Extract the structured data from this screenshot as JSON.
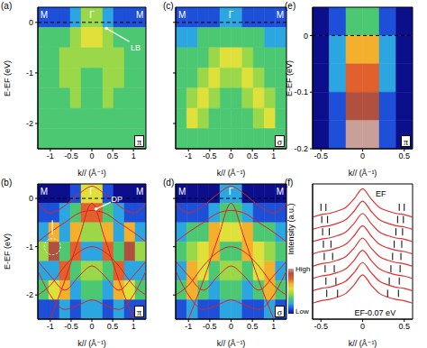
{
  "chart_data": [
    {
      "type": "heatmap",
      "panel_label": "(a)",
      "xlabel": "k// (Å⁻¹)",
      "ylabel": "E-EF (eV)",
      "xlim": [
        -1.3,
        1.3
      ],
      "ylim": [
        -2.5,
        0.3
      ],
      "xticks": [
        -1,
        -0.5,
        0,
        0.5,
        1
      ],
      "yticks": [
        -2,
        -1,
        0
      ],
      "polarization_label": "π",
      "high_symmetry_points": [
        {
          "label": "M",
          "k": -1.15
        },
        {
          "label": "Γ",
          "k": 0
        },
        {
          "label": "M",
          "k": 1.15
        }
      ],
      "reference_lines": [
        {
          "y": 0,
          "line_style": "dashed"
        }
      ],
      "annotations": [
        {
          "text": "LB",
          "x": 1.05,
          "y": -0.5,
          "arrow_from": [
            0.9,
            -0.38
          ],
          "arrow_to": [
            0.35,
            -0.12
          ]
        }
      ],
      "color_range": [
        0,
        9
      ],
      "x_edges": [
        -1.3,
        -1.04,
        -0.78,
        -0.52,
        -0.26,
        0,
        0.26,
        0.52,
        0.78,
        1.04,
        1.3
      ],
      "y_edges": [
        0.3,
        -0.1,
        -0.5,
        -0.9,
        -1.3,
        -1.7,
        -2.1,
        -2.5
      ],
      "cells": [
        [
          1,
          1,
          1,
          2,
          4,
          4,
          2,
          1,
          1,
          1
        ],
        [
          3,
          3,
          3,
          4,
          5,
          5,
          4,
          3,
          3,
          3
        ],
        [
          3,
          3,
          4,
          4,
          4,
          4,
          4,
          4,
          3,
          3
        ],
        [
          3,
          3,
          4,
          4,
          3,
          3,
          4,
          4,
          3,
          3
        ],
        [
          3,
          3,
          3,
          4,
          3,
          3,
          4,
          3,
          3,
          3
        ],
        [
          3,
          3,
          3,
          3,
          3,
          3,
          3,
          3,
          3,
          3
        ],
        [
          3,
          3,
          3,
          3,
          3,
          3,
          3,
          3,
          3,
          3
        ]
      ]
    },
    {
      "type": "heatmap",
      "panel_label": "(b)",
      "xlabel": "k// (Å⁻¹)",
      "ylabel": "E-EF (eV)",
      "xlim": [
        -1.3,
        1.3
      ],
      "ylim": [
        -2.5,
        0.3
      ],
      "xticks": [
        -1,
        -0.5,
        0,
        0.5,
        1
      ],
      "yticks": [
        -2,
        -1,
        0
      ],
      "polarization_label": "π",
      "high_symmetry_points": [
        {
          "label": "M",
          "k": -1.15
        },
        {
          "label": "Γ",
          "k": 0
        },
        {
          "label": "M",
          "k": 1.15
        }
      ],
      "reference_lines": [
        {
          "y": 0,
          "line_style": "dashed"
        }
      ],
      "annotations": [
        {
          "text": "DP",
          "x": 0.6,
          "y": -0.02,
          "arrow_from": [
            0.45,
            -0.08
          ],
          "arrow_to": [
            0.1,
            -0.22
          ]
        }
      ],
      "markers": [
        {
          "x": -0.95,
          "y": -1.0,
          "marker": "circle",
          "arrow_from": [
            -0.95,
            -0.45
          ],
          "arrow_to": [
            -0.95,
            -0.75
          ]
        }
      ],
      "color_range": [
        0,
        9
      ],
      "x_edges": [
        -1.3,
        -1.04,
        -0.78,
        -0.52,
        -0.26,
        0,
        0.26,
        0.52,
        0.78,
        1.04,
        1.3
      ],
      "y_edges": [
        0.3,
        -0.1,
        -0.5,
        -0.9,
        -1.3,
        -1.7,
        -2.1,
        -2.5
      ],
      "cells": [
        [
          0,
          0,
          0,
          1,
          5,
          5,
          1,
          0,
          0,
          0
        ],
        [
          1,
          1,
          2,
          3,
          7,
          7,
          3,
          2,
          1,
          1
        ],
        [
          2,
          6,
          2,
          6,
          4,
          4,
          6,
          2,
          6,
          2
        ],
        [
          4,
          8,
          3,
          7,
          2,
          2,
          7,
          3,
          8,
          4
        ],
        [
          2,
          2,
          7,
          3,
          4,
          4,
          3,
          7,
          2,
          2
        ],
        [
          3,
          5,
          6,
          2,
          3,
          3,
          2,
          6,
          5,
          3
        ],
        [
          1,
          1,
          2,
          1,
          2,
          2,
          1,
          2,
          1,
          1
        ]
      ],
      "bands": {
        "color": "#e02020",
        "x": [
          -1.3,
          -1,
          -0.65,
          -0.3,
          0,
          0.3,
          0.65,
          1,
          1.3
        ],
        "values": [
          [
            -3.2,
            -2.5,
            -1.7,
            -0.8,
            -0.1,
            -0.8,
            -1.7,
            -2.5,
            -3.2
          ],
          [
            -0.1,
            -0.3,
            -0.15,
            0.1,
            0.25,
            0.1,
            -0.15,
            -0.3,
            -0.1
          ],
          [
            -0.9,
            -0.7,
            -0.5,
            -0.3,
            -0.25,
            -0.3,
            -0.5,
            -0.7,
            -0.9
          ],
          [
            -1.3,
            -1.6,
            -1.9,
            -1.6,
            -1.4,
            -1.6,
            -1.9,
            -1.6,
            -1.3
          ],
          [
            -2.0,
            -1.8,
            -1.4,
            -1.1,
            -1.0,
            -1.1,
            -1.4,
            -1.8,
            -2.0
          ],
          [
            -1.5,
            -2.0,
            -2.3,
            -2.2,
            -2.1,
            -2.2,
            -2.3,
            -2.0,
            -1.5
          ]
        ]
      }
    },
    {
      "type": "heatmap",
      "panel_label": "(c)",
      "xlabel": "k// (Å⁻¹)",
      "xlim": [
        -1.3,
        1.3
      ],
      "ylim": [
        -2.5,
        0.3
      ],
      "xticks": [
        -1,
        -0.5,
        0,
        0.5,
        1
      ],
      "yticks": [
        -2,
        -1,
        0
      ],
      "tick_labels": "x",
      "polarization_label": "σ",
      "high_symmetry_points": [
        {
          "label": "M",
          "k": -1.15
        },
        {
          "label": "Γ",
          "k": 0
        },
        {
          "label": "M",
          "k": 1.15
        }
      ],
      "reference_lines": [
        {
          "y": 0,
          "line_style": "dashed"
        }
      ],
      "color_range": [
        0,
        9
      ],
      "x_edges": [
        -1.3,
        -1.04,
        -0.78,
        -0.52,
        -0.26,
        0,
        0.26,
        0.52,
        0.78,
        1.04,
        1.3
      ],
      "y_edges": [
        0.3,
        -0.1,
        -0.5,
        -0.9,
        -1.3,
        -1.7,
        -2.1,
        -2.5
      ],
      "cells": [
        [
          1,
          1,
          1,
          1,
          2,
          2,
          1,
          1,
          1,
          1
        ],
        [
          2,
          2,
          3,
          3,
          3,
          3,
          3,
          3,
          2,
          2
        ],
        [
          3,
          3,
          3,
          4,
          5,
          5,
          4,
          3,
          3,
          3
        ],
        [
          3,
          3,
          4,
          5,
          4,
          4,
          5,
          4,
          3,
          3
        ],
        [
          3,
          4,
          5,
          4,
          3,
          3,
          4,
          5,
          4,
          3
        ],
        [
          3,
          5,
          4,
          3,
          3,
          3,
          3,
          4,
          5,
          3
        ],
        [
          3,
          3,
          3,
          3,
          3,
          3,
          3,
          3,
          3,
          3
        ]
      ]
    },
    {
      "type": "heatmap",
      "panel_label": "(d)",
      "xlabel": "k// (Å⁻¹)",
      "xlim": [
        -1.3,
        1.3
      ],
      "ylim": [
        -2.5,
        0.3
      ],
      "xticks": [
        -1,
        -0.5,
        0,
        0.5,
        1
      ],
      "yticks": [
        -2,
        -1,
        0
      ],
      "tick_labels": "x",
      "polarization_label": "σ",
      "high_symmetry_points": [
        {
          "label": "M",
          "k": -1.15
        },
        {
          "label": "Γ",
          "k": 0
        },
        {
          "label": "M",
          "k": 1.15
        }
      ],
      "reference_lines": [
        {
          "y": 0,
          "line_style": "dashed"
        }
      ],
      "color_range": [
        0,
        9
      ],
      "color_bar": {
        "range": [
          0,
          9
        ],
        "labels": [
          "High",
          "Low"
        ]
      },
      "x_edges": [
        -1.3,
        -1.04,
        -0.78,
        -0.52,
        -0.26,
        0,
        0.26,
        0.52,
        0.78,
        1.04,
        1.3
      ],
      "y_edges": [
        0.3,
        -0.1,
        -0.5,
        -0.9,
        -1.3,
        -1.7,
        -2.1,
        -2.5
      ],
      "cells": [
        [
          0,
          0,
          0,
          0,
          2,
          2,
          0,
          0,
          0,
          0
        ],
        [
          1,
          1,
          1,
          2,
          3,
          3,
          2,
          1,
          1,
          1
        ],
        [
          2,
          3,
          3,
          6,
          5,
          5,
          6,
          3,
          3,
          2
        ],
        [
          3,
          4,
          5,
          6,
          3,
          3,
          6,
          5,
          4,
          3
        ],
        [
          2,
          6,
          5,
          3,
          4,
          4,
          3,
          5,
          6,
          2
        ],
        [
          3,
          6,
          3,
          2,
          3,
          3,
          2,
          3,
          6,
          3
        ],
        [
          1,
          2,
          1,
          1,
          2,
          2,
          1,
          1,
          2,
          1
        ]
      ],
      "bands": {
        "color": "#e02020",
        "x": [
          -1.3,
          -1,
          -0.65,
          -0.3,
          0,
          0.3,
          0.65,
          1,
          1.3
        ],
        "values": [
          [
            -3.2,
            -2.5,
            -1.7,
            -0.8,
            -0.1,
            -0.8,
            -1.7,
            -2.5,
            -3.2
          ],
          [
            -0.1,
            -0.3,
            -0.15,
            0.1,
            0.25,
            0.1,
            -0.15,
            -0.3,
            -0.1
          ],
          [
            -0.9,
            -0.7,
            -0.5,
            -0.3,
            -0.25,
            -0.3,
            -0.5,
            -0.7,
            -0.9
          ],
          [
            -1.3,
            -1.6,
            -1.9,
            -1.6,
            -1.4,
            -1.6,
            -1.9,
            -1.6,
            -1.3
          ],
          [
            -2.0,
            -1.8,
            -1.4,
            -1.1,
            -1.0,
            -1.1,
            -1.4,
            -1.8,
            -2.0
          ],
          [
            -1.5,
            -2.0,
            -2.3,
            -2.2,
            -2.1,
            -2.2,
            -2.3,
            -2.0,
            -1.5
          ]
        ]
      }
    },
    {
      "type": "heatmap",
      "panel_label": "(e)",
      "xlabel": "k// (Å⁻¹)",
      "ylabel": "E-EF (eV)",
      "xlim": [
        -0.6,
        0.6
      ],
      "ylim": [
        -0.2,
        0.05
      ],
      "xticks": [
        -0.5,
        0,
        0.5
      ],
      "yticks": [
        -0.2,
        -0.1,
        0
      ],
      "polarization_label": "π",
      "reference_lines": [
        {
          "y": 0,
          "line_style": "dashed"
        }
      ],
      "color_range": [
        0,
        9
      ],
      "x_edges": [
        -0.6,
        -0.4,
        -0.2,
        0,
        0.2,
        0.4,
        0.6
      ],
      "y_edges": [
        0.05,
        0,
        -0.05,
        -0.1,
        -0.15,
        -0.2
      ],
      "cells": [
        [
          0,
          1,
          3,
          3,
          1,
          0
        ],
        [
          0,
          2,
          6,
          6,
          2,
          0
        ],
        [
          0,
          2,
          7,
          7,
          2,
          0
        ],
        [
          0,
          1,
          8,
          8,
          1,
          0
        ],
        [
          0,
          1,
          9,
          9,
          1,
          0
        ]
      ]
    },
    {
      "type": "line",
      "panel_label": "(f)",
      "xlabel": "k// (Å⁻¹)",
      "ylabel": "Intensity (a.u.)",
      "xlim": [
        -0.6,
        0.6
      ],
      "ylim": [
        -1,
        10
      ],
      "xticks": [
        -0.5,
        0,
        0.5
      ],
      "tick_labels": "x",
      "color": "#e03030",
      "x": [
        -0.6,
        -0.5,
        -0.4,
        -0.3,
        -0.2,
        -0.1,
        0,
        0.1,
        0.2,
        0.3,
        0.4,
        0.5,
        0.6
      ],
      "series": [
        {
          "values": [
            7.3,
            7.5,
            7.6,
            7.8,
            8.1,
            8.8,
            9.6,
            8.8,
            8.1,
            7.8,
            7.6,
            7.5,
            7.3
          ]
        },
        {
          "values": [
            6.3,
            6.5,
            6.6,
            6.8,
            7.1,
            7.8,
            8.6,
            7.8,
            7.1,
            6.8,
            6.6,
            6.5,
            6.3
          ]
        },
        {
          "values": [
            5.3,
            5.5,
            5.6,
            5.8,
            6.1,
            6.8,
            7.6,
            6.8,
            6.1,
            5.8,
            5.6,
            5.5,
            5.3
          ]
        },
        {
          "values": [
            4.3,
            4.5,
            4.6,
            4.8,
            5.1,
            5.8,
            6.6,
            5.8,
            5.1,
            4.8,
            4.6,
            4.5,
            4.3
          ]
        },
        {
          "values": [
            3.3,
            3.5,
            3.6,
            3.8,
            4.1,
            4.8,
            5.6,
            4.8,
            4.1,
            3.8,
            3.6,
            3.5,
            3.3
          ]
        },
        {
          "values": [
            2.3,
            2.5,
            2.6,
            2.8,
            3.1,
            3.8,
            4.6,
            3.8,
            3.1,
            2.8,
            2.6,
            2.5,
            2.3
          ]
        },
        {
          "values": [
            1.3,
            1.5,
            1.6,
            1.8,
            2.1,
            2.8,
            3.6,
            2.8,
            2.1,
            1.8,
            1.6,
            1.5,
            1.3
          ]
        },
        {
          "values": [
            0.3,
            0.5,
            0.6,
            0.8,
            1.1,
            1.8,
            2.6,
            1.8,
            1.1,
            0.8,
            0.6,
            0.5,
            0.3
          ]
        }
      ],
      "peaks": [
        {
          "x": [
            -0.5,
            -0.44,
            0.44,
            0.5
          ],
          "y": [
            8.1,
            8.1,
            8.1,
            8.1
          ]
        },
        {
          "x": [
            -0.49,
            -0.42,
            0.42,
            0.49
          ],
          "y": [
            7.1,
            7.1,
            7.1,
            7.1
          ]
        },
        {
          "x": [
            -0.48,
            -0.4,
            0.4,
            0.48
          ],
          "y": [
            6.1,
            6.1,
            6.1,
            6.1
          ]
        },
        {
          "x": [
            -0.47,
            -0.38,
            0.38,
            0.47
          ],
          "y": [
            5.1,
            5.1,
            5.1,
            5.1
          ]
        },
        {
          "x": [
            -0.46,
            -0.36,
            0.36,
            0.46
          ],
          "y": [
            4.1,
            4.1,
            4.1,
            4.1
          ]
        },
        {
          "x": [
            -0.45,
            -0.34,
            0.34,
            0.45
          ],
          "y": [
            3.1,
            3.1,
            3.1,
            3.1
          ]
        },
        {
          "x": [
            -0.44,
            -0.32,
            0.32,
            0.44
          ],
          "y": [
            2.1,
            2.1,
            2.1,
            2.1
          ]
        },
        {
          "x": [
            -0.43,
            -0.3,
            0.3,
            0.43
          ],
          "y": [
            1.1,
            1.1,
            1.1,
            1.1
          ]
        }
      ],
      "annotations": [
        {
          "text": "EF",
          "x": 0.22,
          "y": 9.2
        },
        {
          "text": "EF-0.07 eV",
          "x": 0.15,
          "y": -0.5
        }
      ]
    }
  ]
}
